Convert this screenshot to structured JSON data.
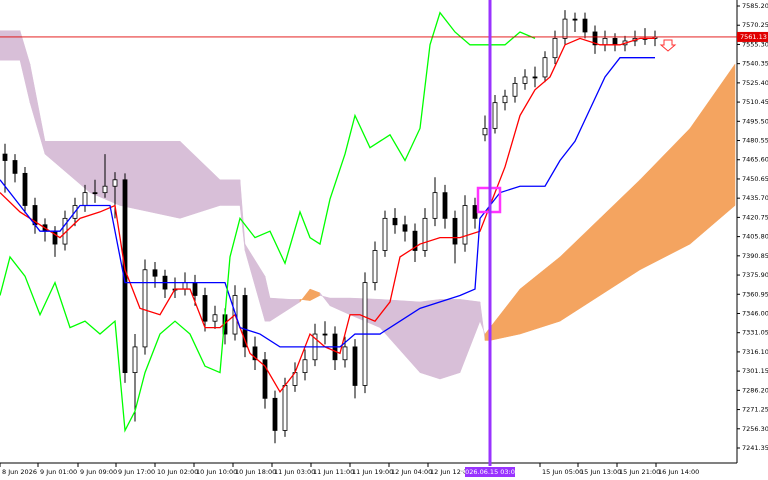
{
  "chart_data": {
    "type": "candlestick",
    "xlim": [
      0,
      147
    ],
    "ylim": [
      7241.35,
      7585.2
    ],
    "yticks": [
      {
        "value": 7585.2,
        "label": "7585.20"
      },
      {
        "value": 7570.25,
        "label": "7570.25"
      },
      {
        "value": 7555.3,
        "label": "7555.30"
      },
      {
        "value": 7540.35,
        "label": "7540.35"
      },
      {
        "value": 7525.4,
        "label": "7525.40"
      },
      {
        "value": 7510.45,
        "label": "7510.45"
      },
      {
        "value": 7495.5,
        "label": "7495.50"
      },
      {
        "value": 7480.55,
        "label": "7480.55"
      },
      {
        "value": 7465.6,
        "label": "7465.60"
      },
      {
        "value": 7450.65,
        "label": "7450.65"
      },
      {
        "value": 7435.7,
        "label": "7435.70"
      },
      {
        "value": 7420.75,
        "label": "7420.75"
      },
      {
        "value": 7405.8,
        "label": "7405.80"
      },
      {
        "value": 7390.85,
        "label": "7390.85"
      },
      {
        "value": 7375.9,
        "label": "7375.90"
      },
      {
        "value": 7360.95,
        "label": "7360.95"
      },
      {
        "value": 7346,
        "label": "7346.00"
      },
      {
        "value": 7331.05,
        "label": "7331.05"
      },
      {
        "value": 7316.1,
        "label": "7316.10"
      },
      {
        "value": 7301.15,
        "label": "7301.15"
      },
      {
        "value": 7286.2,
        "label": "7286.20"
      },
      {
        "value": 7271.25,
        "label": "7271.25"
      },
      {
        "value": 7256.3,
        "label": "7256.30"
      },
      {
        "value": 7241.35,
        "label": "7241.35"
      }
    ],
    "xticks": [
      {
        "value": 0,
        "label": "8 Jun 2026"
      },
      {
        "value": 7.6,
        "label": "9 Jun 01:00"
      },
      {
        "value": 15.6,
        "label": "9 Jun 09:00"
      },
      {
        "value": 23.2,
        "label": "9 Jun 17:00"
      },
      {
        "value": 31,
        "label": "10 Jun 02:00"
      },
      {
        "value": 38.8,
        "label": "10 Jun 10:00"
      },
      {
        "value": 46.6,
        "label": "10 Jun 18:00"
      },
      {
        "value": 54.4,
        "label": "11 Jun 03:00"
      },
      {
        "value": 62.2,
        "label": "11 Jun 11:00"
      },
      {
        "value": 70,
        "label": "11 Jun 19:00"
      },
      {
        "value": 77.8,
        "label": "12 Jun 04:00"
      },
      {
        "value": 85.6,
        "label": "12 Jun 12:00"
      },
      {
        "value": 108,
        "label": "15 Jun 05:00"
      },
      {
        "value": 115.6,
        "label": "15 Jun 13:00"
      },
      {
        "value": 123.4,
        "label": "15 Jun 21:00"
      },
      {
        "value": 131.2,
        "label": "16 Jun 14:00"
      }
    ],
    "x": [
      1,
      3,
      5,
      7,
      9,
      11,
      13,
      15,
      17,
      19,
      21,
      23,
      25,
      27,
      29,
      31,
      33,
      35,
      37,
      39,
      41,
      43,
      45,
      47,
      49,
      51,
      53,
      55,
      57,
      59,
      61,
      63,
      65,
      67,
      69,
      71,
      73,
      75,
      77,
      79,
      81,
      83,
      85,
      87,
      89,
      91,
      93,
      95,
      97,
      99,
      101,
      103,
      105,
      107,
      109,
      111,
      113,
      115,
      117,
      119,
      121,
      123,
      125,
      127,
      129,
      131
    ],
    "open": [
      7470,
      7465,
      7455,
      7430,
      7415,
      7410,
      7400,
      7420,
      7430,
      7440,
      7440,
      7445,
      7450,
      7300,
      7320,
      7380,
      7375,
      7365,
      7365,
      7370,
      7360,
      7340,
      7345,
      7330,
      7360,
      7320,
      7310,
      7280,
      7255,
      7290,
      7300,
      7310,
      7330,
      7330,
      7310,
      7320,
      7290,
      7370,
      7395,
      7420,
      7415,
      7410,
      7395,
      7420,
      7440,
      7420,
      7400,
      7430,
      7485,
      7490,
      7510,
      7515,
      7525,
      7530,
      7530,
      7545,
      7560,
      7575,
      7575,
      7565,
      7555,
      7560,
      7555,
      7558,
      7560,
      7560
    ],
    "high": [
      7478,
      7470,
      7460,
      7436,
      7420,
      7414,
      7426,
      7436,
      7446,
      7450,
      7470,
      7456,
      7455,
      7330,
      7388,
      7386,
      7380,
      7374,
      7378,
      7376,
      7366,
      7352,
      7350,
      7368,
      7366,
      7328,
      7316,
      7286,
      7296,
      7308,
      7318,
      7338,
      7340,
      7336,
      7328,
      7326,
      7378,
      7402,
      7426,
      7428,
      7422,
      7416,
      7428,
      7452,
      7446,
      7426,
      7438,
      7436,
      7500,
      7516,
      7520,
      7530,
      7536,
      7538,
      7550,
      7566,
      7582,
      7580,
      7580,
      7570,
      7566,
      7564,
      7562,
      7566,
      7568,
      7566
    ],
    "low": [
      7440,
      7448,
      7424,
      7408,
      7402,
      7390,
      7395,
      7414,
      7425,
      7432,
      7436,
      7420,
      7292,
      7262,
      7314,
      7366,
      7358,
      7358,
      7360,
      7352,
      7332,
      7334,
      7322,
      7325,
      7312,
      7302,
      7272,
      7245,
      7250,
      7285,
      7294,
      7305,
      7322,
      7302,
      7304,
      7280,
      7284,
      7364,
      7390,
      7408,
      7402,
      7386,
      7390,
      7414,
      7412,
      7385,
      7394,
      7412,
      7480,
      7486,
      7504,
      7510,
      7520,
      7522,
      7526,
      7540,
      7555,
      7565,
      7560,
      7548,
      7550,
      7550,
      7550,
      7554,
      7555,
      7554
    ],
    "close": [
      7465,
      7455,
      7430,
      7415,
      7410,
      7400,
      7420,
      7430,
      7440,
      7440,
      7445,
      7450,
      7300,
      7320,
      7380,
      7375,
      7365,
      7365,
      7370,
      7360,
      7340,
      7345,
      7330,
      7360,
      7320,
      7310,
      7280,
      7255,
      7290,
      7300,
      7310,
      7330,
      7330,
      7310,
      7320,
      7290,
      7370,
      7395,
      7420,
      7415,
      7410,
      7395,
      7420,
      7440,
      7420,
      7400,
      7430,
      7420,
      7490,
      7510,
      7515,
      7525,
      7530,
      7530,
      7545,
      7560,
      7575,
      7575,
      7565,
      7555,
      7560,
      7555,
      7558,
      7560,
      7560,
      7561
    ],
    "lines": [
      {
        "color": "#ff0000",
        "x": [
          0,
          4,
          8,
          12,
          16,
          20,
          23,
          25,
          28,
          32,
          35,
          38,
          41,
          44,
          47,
          50,
          53,
          56,
          59,
          62,
          65,
          68,
          70,
          72,
          75,
          78,
          80,
          84,
          88,
          92,
          96,
          98,
          101,
          104,
          107,
          110,
          113,
          116,
          120,
          124,
          128,
          131
        ],
        "values": [
          7440,
          7425,
          7415,
          7405,
          7420,
          7425,
          7430,
          7380,
          7350,
          7345,
          7365,
          7365,
          7335,
          7335,
          7345,
          7315,
          7305,
          7285,
          7300,
          7330,
          7320,
          7315,
          7345,
          7345,
          7340,
          7355,
          7390,
          7400,
          7405,
          7405,
          7410,
          7430,
          7460,
          7500,
          7520,
          7530,
          7555,
          7560,
          7555,
          7555,
          7560,
          7560
        ]
      },
      {
        "color": "#0000ff",
        "x": [
          0,
          4,
          8,
          12,
          16,
          22,
          25,
          30,
          45,
          48,
          52,
          56,
          68,
          71,
          76,
          80,
          84,
          92,
          95,
          96,
          100,
          104,
          109,
          112,
          115,
          118,
          121,
          124,
          131
        ],
        "values": [
          7450,
          7430,
          7410,
          7410,
          7430,
          7430,
          7370,
          7370,
          7370,
          7335,
          7330,
          7320,
          7320,
          7330,
          7330,
          7340,
          7350,
          7360,
          7365,
          7420,
          7440,
          7445,
          7445,
          7465,
          7480,
          7505,
          7530,
          7545,
          7545
        ]
      },
      {
        "color": "#00ff00",
        "x": [
          0,
          2,
          5,
          8,
          11,
          14,
          17,
          20,
          23,
          25,
          27,
          29,
          32,
          35,
          38,
          41,
          44,
          46,
          48,
          51,
          54,
          57,
          60,
          62,
          64,
          66,
          69,
          71,
          74,
          78,
          81,
          84,
          86,
          88,
          91,
          94,
          98,
          101,
          104,
          107
        ],
        "values": [
          7360,
          7390,
          7375,
          7345,
          7370,
          7335,
          7340,
          7330,
          7340,
          7255,
          7270,
          7300,
          7330,
          7340,
          7330,
          7305,
          7300,
          7390,
          7420,
          7405,
          7410,
          7385,
          7425,
          7405,
          7400,
          7435,
          7470,
          7500,
          7475,
          7485,
          7465,
          7490,
          7555,
          7580,
          7565,
          7555,
          7555,
          7555,
          7565,
          7560
        ]
      }
    ],
    "cloud": {
      "bull_color": "#f4a460",
      "bear_color": "#d8bfd8",
      "x": [
        0,
        4,
        6,
        9,
        12,
        18,
        24,
        30,
        36,
        40,
        44,
        48,
        49,
        53,
        54,
        58,
        60,
        62,
        64,
        66,
        70,
        76,
        84,
        88,
        92,
        96,
        97,
        98,
        104,
        112,
        120,
        128,
        138,
        147
      ],
      "span_a": [
        7543,
        7543,
        7510,
        7470,
        7460,
        7440,
        7430,
        7425,
        7420,
        7425,
        7430,
        7430,
        7395,
        7340,
        7340,
        7350,
        7355,
        7365,
        7362,
        7352,
        7345,
        7335,
        7300,
        7295,
        7300,
        7340,
        7330,
        7335,
        7365,
        7390,
        7420,
        7450,
        7490,
        7540
      ],
      "span_b": [
        7566,
        7566,
        7540,
        7480,
        7480,
        7480,
        7480,
        7480,
        7480,
        7465,
        7450,
        7450,
        7400,
        7375,
        7358,
        7357,
        7357,
        7356,
        7360,
        7358,
        7358,
        7357,
        7355,
        7357,
        7357,
        7355,
        7325,
        7325,
        7330,
        7340,
        7360,
        7380,
        7400,
        7430
      ]
    },
    "price_line": {
      "value": 7561.13,
      "label": "7561.13",
      "color": "#e00000"
    },
    "crosshair": {
      "x": 98,
      "label": "2026.06.15 03:00",
      "color": "#9933ff"
    }
  }
}
